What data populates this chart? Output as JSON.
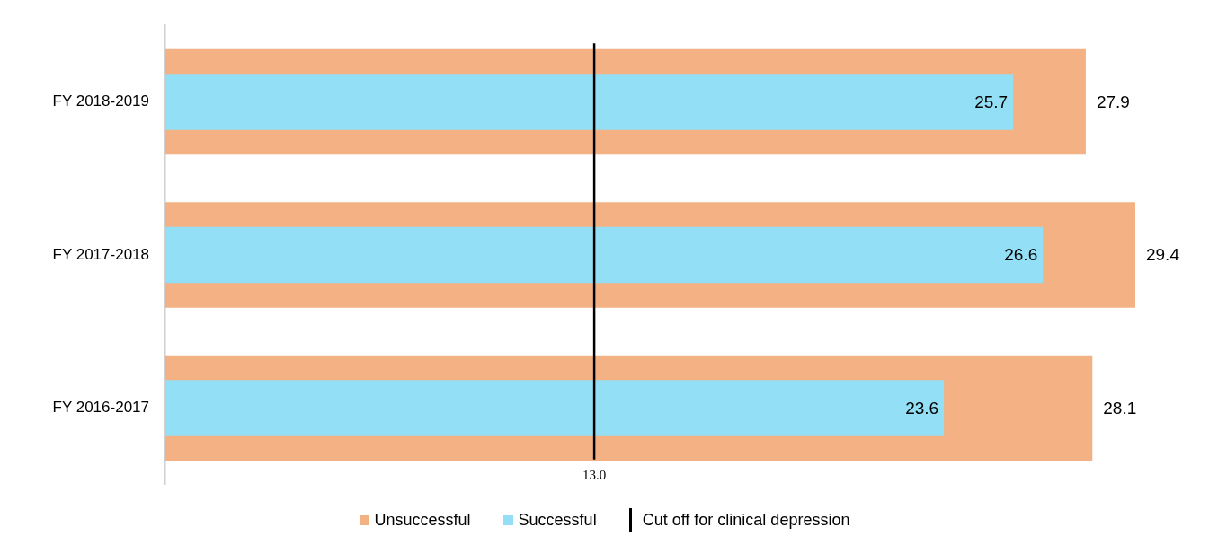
{
  "chart_data": {
    "type": "bar",
    "orientation": "horizontal",
    "categories": [
      "FY 2018-2019",
      "FY 2017-2018",
      "FY 2016-2017"
    ],
    "series": [
      {
        "name": "Unsuccessful",
        "color": "#f4b183",
        "values": [
          27.9,
          29.4,
          28.1
        ]
      },
      {
        "name": "Successful",
        "color": "#93dff5",
        "values": [
          25.7,
          26.6,
          23.6
        ]
      }
    ],
    "tick_labels": "y",
    "data_labels": true,
    "legend": "bottom",
    "ref_lines": [
      {
        "axis": "x",
        "value": 13.0,
        "label": "Cut off for clinical depression",
        "color": "#000000"
      }
    ],
    "annotations": [
      "13.0"
    ]
  }
}
